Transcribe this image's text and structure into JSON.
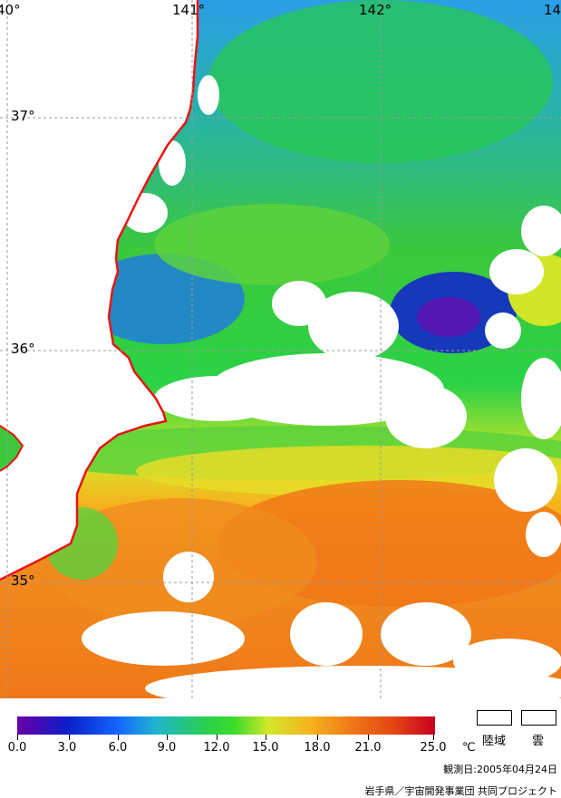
{
  "map": {
    "lon_labels": [
      "40°",
      "141°",
      "142°",
      "14"
    ],
    "lat_labels": [
      "37°",
      "36°",
      "35°"
    ],
    "colors": {
      "coast": "#e81414",
      "grid": "#9a9a9a",
      "land": "#ffffff",
      "cloud": "#ffffff",
      "temp_cold": "#1e64ff",
      "temp_cool": "#28c850",
      "temp_mid": "#d2e628",
      "temp_warm": "#f08c1e"
    }
  },
  "legend": {
    "ticks": [
      "0.0",
      "3.0",
      "6.0",
      "9.0",
      "12.0",
      "15.0",
      "18.0",
      "21.0",
      "25.0"
    ],
    "unit": "℃",
    "land_label": "陸域",
    "cloud_label": "雲"
  },
  "footer": {
    "observation_date": "観測日:2005年04月24日",
    "credit": "岩手県／宇宙開発事業団 共同プロジェクト"
  }
}
